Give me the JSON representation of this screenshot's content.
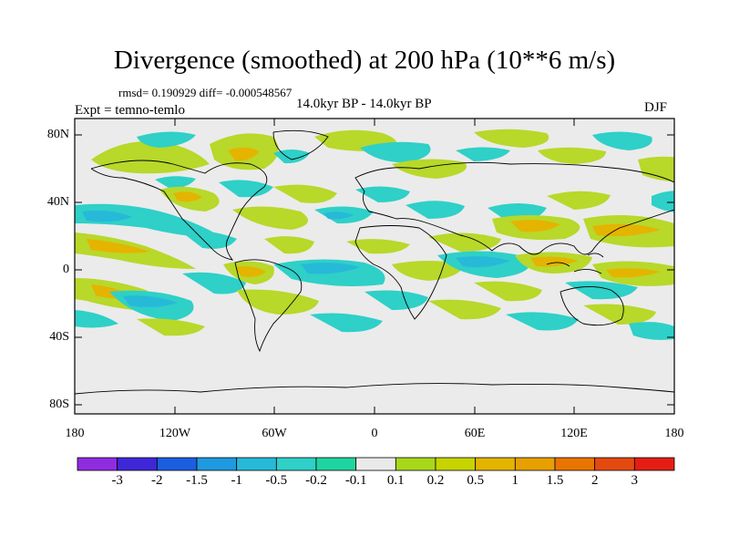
{
  "title": "Divergence (smoothed) at 200 hPa (10**6 m/s)",
  "stats": "rmsd= 0.190929 diff= -0.000548567",
  "expt": "Expt = temno-temlo",
  "period": "14.0kyr BP - 14.0kyr BP",
  "season": "DJF",
  "map": {
    "lat_ticks": [
      "80N",
      "40N",
      "0",
      "40S",
      "80S"
    ],
    "lon_ticks": [
      "180",
      "120W",
      "60W",
      "0",
      "60E",
      "120E",
      "180"
    ]
  },
  "colorbar": {
    "colors": [
      "#8f2ce0",
      "#3f27d8",
      "#1b5ee0",
      "#1e9ae0",
      "#27b9d8",
      "#2ed0c8",
      "#1fd4a0",
      "#eaeaea",
      "#a8d81c",
      "#c8d400",
      "#e4b400",
      "#e8a000",
      "#ea7400",
      "#e44a10",
      "#e41e14"
    ],
    "labels": [
      "-3",
      "-2",
      "-1.5",
      "-1",
      "-0.5",
      "-0.2",
      "-0.1",
      "0.1",
      "0.2",
      "0.5",
      "1",
      "1.5",
      "2",
      "3"
    ]
  }
}
